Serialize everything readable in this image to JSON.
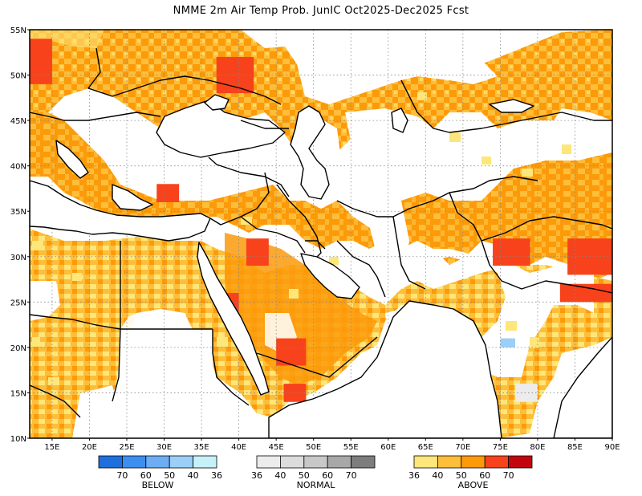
{
  "title": "NMME 2m Air Temp Prob. JunIC  Oct2025-Dec2025 Fcst",
  "chart_data": {
    "type": "heatmap",
    "title": "NMME 2m Air Temp Prob. JunIC  Oct2025-Dec2025 Fcst",
    "lon_range": [
      12,
      90
    ],
    "lat_range": [
      10,
      55
    ],
    "x_ticks": [
      {
        "value": 15,
        "label": "15E"
      },
      {
        "value": 20,
        "label": "20E"
      },
      {
        "value": 25,
        "label": "25E"
      },
      {
        "value": 30,
        "label": "30E"
      },
      {
        "value": 35,
        "label": "35E"
      },
      {
        "value": 40,
        "label": "40E"
      },
      {
        "value": 45,
        "label": "45E"
      },
      {
        "value": 50,
        "label": "50E"
      },
      {
        "value": 55,
        "label": "55E"
      },
      {
        "value": 60,
        "label": "60E"
      },
      {
        "value": 65,
        "label": "65E"
      },
      {
        "value": 70,
        "label": "70E"
      },
      {
        "value": 75,
        "label": "75E"
      },
      {
        "value": 80,
        "label": "80E"
      },
      {
        "value": 85,
        "label": "85E"
      },
      {
        "value": 90,
        "label": "90E"
      }
    ],
    "y_ticks": [
      {
        "value": 55,
        "label": "55N"
      },
      {
        "value": 50,
        "label": "50N"
      },
      {
        "value": 45,
        "label": "45N"
      },
      {
        "value": 40,
        "label": "40N"
      },
      {
        "value": 35,
        "label": "35N"
      },
      {
        "value": 30,
        "label": "30N"
      },
      {
        "value": 25,
        "label": "25N"
      },
      {
        "value": 20,
        "label": "20N"
      },
      {
        "value": 15,
        "label": "15N"
      },
      {
        "value": 10,
        "label": "10N"
      }
    ],
    "grid": true,
    "regions": [
      {
        "category": "above",
        "level": 60,
        "lon": [
          12,
          15
        ],
        "lat": [
          49,
          54
        ]
      },
      {
        "category": "above",
        "level": 60,
        "lon": [
          37,
          42
        ],
        "lat": [
          48,
          52
        ]
      },
      {
        "category": "above",
        "level": 60,
        "lon": [
          29,
          32
        ],
        "lat": [
          36,
          38
        ]
      },
      {
        "category": "above",
        "level": 60,
        "lon": [
          41,
          44
        ],
        "lat": [
          29,
          32
        ]
      },
      {
        "category": "above",
        "level": 60,
        "lon": [
          38,
          40
        ],
        "lat": [
          24,
          26
        ]
      },
      {
        "category": "above",
        "level": 60,
        "lon": [
          45,
          49
        ],
        "lat": [
          18,
          21
        ]
      },
      {
        "category": "above",
        "level": 60,
        "lon": [
          46,
          49
        ],
        "lat": [
          14,
          16
        ]
      },
      {
        "category": "above",
        "level": 60,
        "lon": [
          74,
          79
        ],
        "lat": [
          29,
          32
        ]
      },
      {
        "category": "above",
        "level": 60,
        "lon": [
          84,
          90
        ],
        "lat": [
          28,
          32
        ]
      },
      {
        "category": "above",
        "level": 60,
        "lon": [
          83,
          90
        ],
        "lat": [
          25,
          27
        ]
      },
      {
        "category": "below",
        "level": 40,
        "lon": [
          75,
          77
        ],
        "lat": [
          20,
          21
        ]
      },
      {
        "category": "normal",
        "level": 36,
        "lon": [
          77,
          80
        ],
        "lat": [
          14,
          16
        ]
      }
    ],
    "legend": [
      {
        "category": "BELOW",
        "labels": [
          "70",
          "60",
          "50",
          "40",
          "36"
        ],
        "colors": [
          "#1e6fdd",
          "#3c8ff0",
          "#6cadf4",
          "#9bcff7",
          "#c5f1f8"
        ]
      },
      {
        "category": "NORMAL",
        "labels": [
          "36",
          "40",
          "50",
          "60",
          "70"
        ],
        "colors": [
          "#ececec",
          "#dcdcdc",
          "#c8c8c8",
          "#a8a8a8",
          "#7d7d7d"
        ]
      },
      {
        "category": "ABOVE",
        "labels": [
          "36",
          "40",
          "50",
          "60",
          "70"
        ],
        "colors": [
          "#fde67a",
          "#fdbe3a",
          "#fc9a0a",
          "#f7421c",
          "#c2050f"
        ]
      }
    ]
  }
}
